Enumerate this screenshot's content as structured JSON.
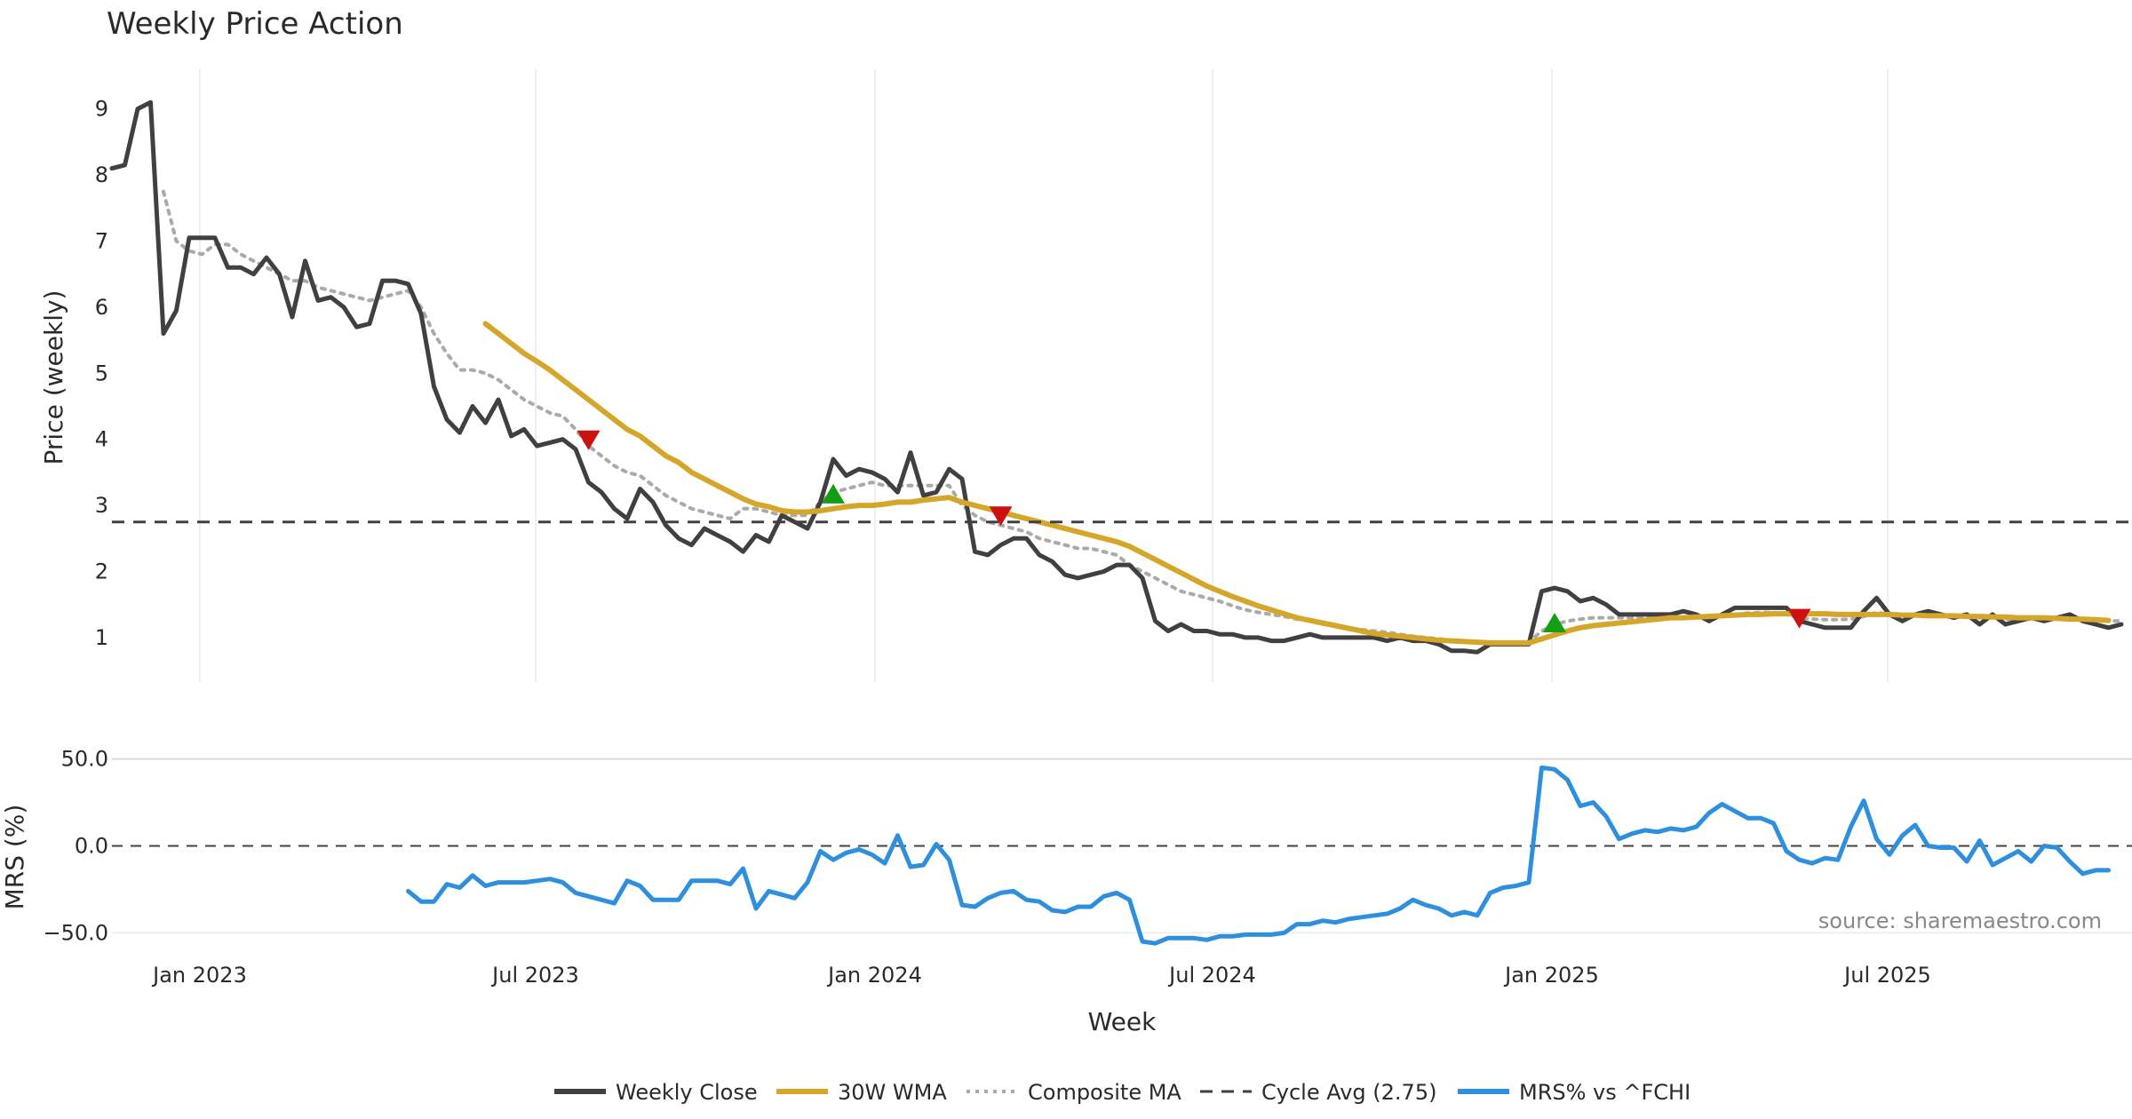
{
  "chart_data": {
    "type": "line",
    "title": "Weekly Price Action",
    "xlabel": "Week",
    "source": "source: sharemaestro.com",
    "x_tick_labels": [
      "Jan 2023",
      "Jul 2023",
      "Jan 2024",
      "Jul 2024",
      "Jan 2025",
      "Jul 2025"
    ],
    "price_panel": {
      "ylabel": "Price (weekly)",
      "ylim": [
        0.3,
        9.6
      ],
      "y_ticks": [
        1,
        2,
        3,
        4,
        5,
        6,
        7,
        8,
        9
      ],
      "grid": "vertical",
      "series": [
        {
          "name": "Weekly Close",
          "color": "#404040",
          "style": "solid",
          "values": [
            8.1,
            8.15,
            9.0,
            9.1,
            5.6,
            5.95,
            7.05,
            7.05,
            7.05,
            6.6,
            6.6,
            6.5,
            6.75,
            6.5,
            5.85,
            6.7,
            6.1,
            6.15,
            6.0,
            5.7,
            5.75,
            6.4,
            6.4,
            6.35,
            5.9,
            4.8,
            4.3,
            4.1,
            4.5,
            4.25,
            4.6,
            4.05,
            4.15,
            3.9,
            3.95,
            4.0,
            3.85,
            3.35,
            3.2,
            2.95,
            2.8,
            3.25,
            3.05,
            2.7,
            2.5,
            2.4,
            2.65,
            2.55,
            2.45,
            2.3,
            2.55,
            2.45,
            2.85,
            2.75,
            2.65,
            3.05,
            3.7,
            3.45,
            3.55,
            3.5,
            3.4,
            3.2,
            3.8,
            3.15,
            3.2,
            3.55,
            3.4,
            2.3,
            2.25,
            2.4,
            2.5,
            2.5,
            2.25,
            2.15,
            1.95,
            1.9,
            1.95,
            2.0,
            2.1,
            2.1,
            1.9,
            1.25,
            1.1,
            1.2,
            1.1,
            1.1,
            1.05,
            1.05,
            1.0,
            1.0,
            0.95,
            0.95,
            1.0,
            1.05,
            1.0,
            1.0,
            1.0,
            1.0,
            1.0,
            0.95,
            1.0,
            0.95,
            0.95,
            0.9,
            0.8,
            0.8,
            0.78,
            0.9,
            0.9,
            0.9,
            0.9,
            1.7,
            1.75,
            1.7,
            1.55,
            1.6,
            1.5,
            1.35,
            1.35,
            1.35,
            1.35,
            1.35,
            1.4,
            1.35,
            1.25,
            1.35,
            1.45,
            1.45,
            1.45,
            1.45,
            1.45,
            1.25,
            1.2,
            1.15,
            1.15,
            1.15,
            1.4,
            1.6,
            1.35,
            1.25,
            1.35,
            1.4,
            1.35,
            1.3,
            1.35,
            1.2,
            1.35,
            1.2,
            1.25,
            1.3,
            1.25,
            1.3,
            1.35,
            1.25,
            1.2,
            1.15,
            1.2
          ]
        },
        {
          "name": "30W WMA",
          "color": "#d4a62a",
          "style": "solid",
          "values": [
            null,
            null,
            null,
            null,
            null,
            null,
            null,
            null,
            null,
            null,
            null,
            null,
            null,
            null,
            null,
            null,
            null,
            null,
            null,
            null,
            null,
            null,
            null,
            null,
            null,
            null,
            null,
            null,
            null,
            5.75,
            5.6,
            5.45,
            5.3,
            5.18,
            5.05,
            4.9,
            4.75,
            4.6,
            4.45,
            4.3,
            4.15,
            4.05,
            3.9,
            3.75,
            3.65,
            3.5,
            3.4,
            3.3,
            3.2,
            3.1,
            3.02,
            2.98,
            2.92,
            2.9,
            2.9,
            2.92,
            2.95,
            2.98,
            3.0,
            3.0,
            3.02,
            3.05,
            3.05,
            3.08,
            3.1,
            3.12,
            3.05,
            3.0,
            2.95,
            2.9,
            2.85,
            2.8,
            2.75,
            2.7,
            2.65,
            2.6,
            2.55,
            2.5,
            2.45,
            2.38,
            2.28,
            2.18,
            2.08,
            1.98,
            1.88,
            1.78,
            1.7,
            1.62,
            1.55,
            1.48,
            1.42,
            1.36,
            1.3,
            1.26,
            1.22,
            1.18,
            1.14,
            1.1,
            1.06,
            1.04,
            1.02,
            1.0,
            0.98,
            0.96,
            0.95,
            0.94,
            0.93,
            0.92,
            0.92,
            0.92,
            0.92,
            0.98,
            1.04,
            1.1,
            1.15,
            1.18,
            1.2,
            1.22,
            1.24,
            1.26,
            1.28,
            1.3,
            1.3,
            1.31,
            1.32,
            1.33,
            1.34,
            1.35,
            1.35,
            1.36,
            1.36,
            1.36,
            1.36,
            1.36,
            1.35,
            1.35,
            1.35,
            1.35,
            1.35,
            1.34,
            1.34,
            1.33,
            1.33,
            1.33,
            1.32,
            1.32,
            1.31,
            1.31,
            1.3,
            1.3,
            1.3,
            1.29,
            1.28,
            1.28,
            1.27,
            1.26
          ]
        },
        {
          "name": "Composite MA",
          "color": "#aaaaaa",
          "style": "dotted",
          "values": [
            null,
            null,
            null,
            null,
            7.75,
            7.0,
            6.85,
            6.8,
            6.95,
            6.95,
            6.8,
            6.7,
            6.6,
            6.5,
            6.4,
            6.4,
            6.3,
            6.25,
            6.2,
            6.15,
            6.1,
            6.15,
            6.2,
            6.25,
            6.0,
            5.6,
            5.3,
            5.05,
            5.05,
            5.0,
            4.9,
            4.75,
            4.6,
            4.5,
            4.4,
            4.35,
            4.15,
            3.9,
            3.75,
            3.6,
            3.5,
            3.45,
            3.3,
            3.15,
            3.05,
            2.95,
            2.9,
            2.85,
            2.8,
            2.95,
            2.95,
            2.9,
            2.85,
            2.85,
            2.85,
            3.05,
            3.2,
            3.25,
            3.3,
            3.35,
            3.3,
            3.3,
            3.3,
            3.3,
            3.3,
            3.3,
            3.0,
            2.85,
            2.75,
            2.7,
            2.65,
            2.6,
            2.5,
            2.45,
            2.4,
            2.35,
            2.35,
            2.3,
            2.25,
            2.1,
            2.0,
            1.9,
            1.8,
            1.7,
            1.65,
            1.6,
            1.55,
            1.48,
            1.42,
            1.38,
            1.35,
            1.32,
            1.28,
            1.25,
            1.2,
            1.18,
            1.15,
            1.12,
            1.1,
            1.08,
            1.05,
            1.02,
            1.0,
            0.98,
            0.96,
            0.95,
            0.94,
            0.93,
            0.93,
            0.93,
            0.93,
            1.1,
            1.2,
            1.25,
            1.28,
            1.3,
            1.3,
            1.3,
            1.3,
            1.3,
            1.3,
            1.3,
            1.3,
            1.3,
            1.3,
            1.32,
            1.35,
            1.37,
            1.38,
            1.38,
            1.35,
            1.3,
            1.28,
            1.27,
            1.27,
            1.28,
            1.32,
            1.38,
            1.35,
            1.33,
            1.35,
            1.36,
            1.35,
            1.33,
            1.32,
            1.3,
            1.3,
            1.28,
            1.28,
            1.28,
            1.27,
            1.28,
            1.3,
            1.28,
            1.26,
            1.25,
            1.25
          ]
        },
        {
          "name": "Cycle Avg (2.75)",
          "color": "#404040",
          "style": "dashed",
          "value": 2.75
        }
      ],
      "signals": [
        {
          "type": "sell",
          "index": 37,
          "value": 4.0,
          "color": "#cc1111"
        },
        {
          "type": "buy",
          "index": 56,
          "value": 3.15,
          "color": "#149e14"
        },
        {
          "type": "sell",
          "index": 69,
          "value": 2.85,
          "color": "#cc1111"
        },
        {
          "type": "buy",
          "index": 112,
          "value": 1.2,
          "color": "#149e14"
        },
        {
          "type": "sell",
          "index": 131,
          "value": 1.3,
          "color": "#cc1111"
        }
      ]
    },
    "mrs_panel": {
      "ylabel": "MRS (%)",
      "ylim": [
        -60,
        60
      ],
      "y_ticks": [
        50.0,
        0.0,
        -50.0
      ],
      "y_tick_labels": [
        "50.0",
        "0.0",
        "−50.0"
      ],
      "zero_line": 0.0,
      "series": [
        {
          "name": "MRS% vs ^FCHI",
          "color": "#2f8fdf",
          "style": "solid",
          "start_index": 23,
          "values": [
            -26,
            -32,
            -32,
            -22,
            -24,
            -17,
            -23,
            -21,
            -21,
            -21,
            -20,
            -19,
            -21,
            -27,
            -29,
            -31,
            -33,
            -20,
            -23,
            -31,
            -31,
            -31,
            -20,
            -20,
            -20,
            -22,
            -13,
            -36,
            -26,
            -28,
            -30,
            -21,
            -3,
            -8,
            -4,
            -2,
            -5,
            -10,
            6,
            -12,
            -11,
            1,
            -8,
            -34,
            -35,
            -30,
            -27,
            -26,
            -31,
            -32,
            -37,
            -38,
            -35,
            -35,
            -29,
            -27,
            -31,
            -55,
            -56,
            -53,
            -53,
            -53,
            -54,
            -52,
            -52,
            -51,
            -51,
            -51,
            -50,
            -45,
            -45,
            -43,
            -44,
            -42,
            -41,
            -40,
            -39,
            -36,
            -31,
            -34,
            -36,
            -40,
            -38,
            -40,
            -27,
            -24,
            -23,
            -21,
            45,
            44,
            38,
            23,
            25,
            17,
            4,
            7,
            9,
            8,
            10,
            9,
            11,
            19,
            24,
            20,
            16,
            16,
            13,
            -3,
            -8,
            -10,
            -7,
            -8,
            11,
            26,
            4,
            -5,
            6,
            12,
            0,
            -1,
            -1,
            -9,
            3,
            -11,
            -7,
            -3,
            -9,
            0,
            -1,
            -9,
            -16,
            -14,
            -14
          ]
        }
      ]
    }
  }
}
